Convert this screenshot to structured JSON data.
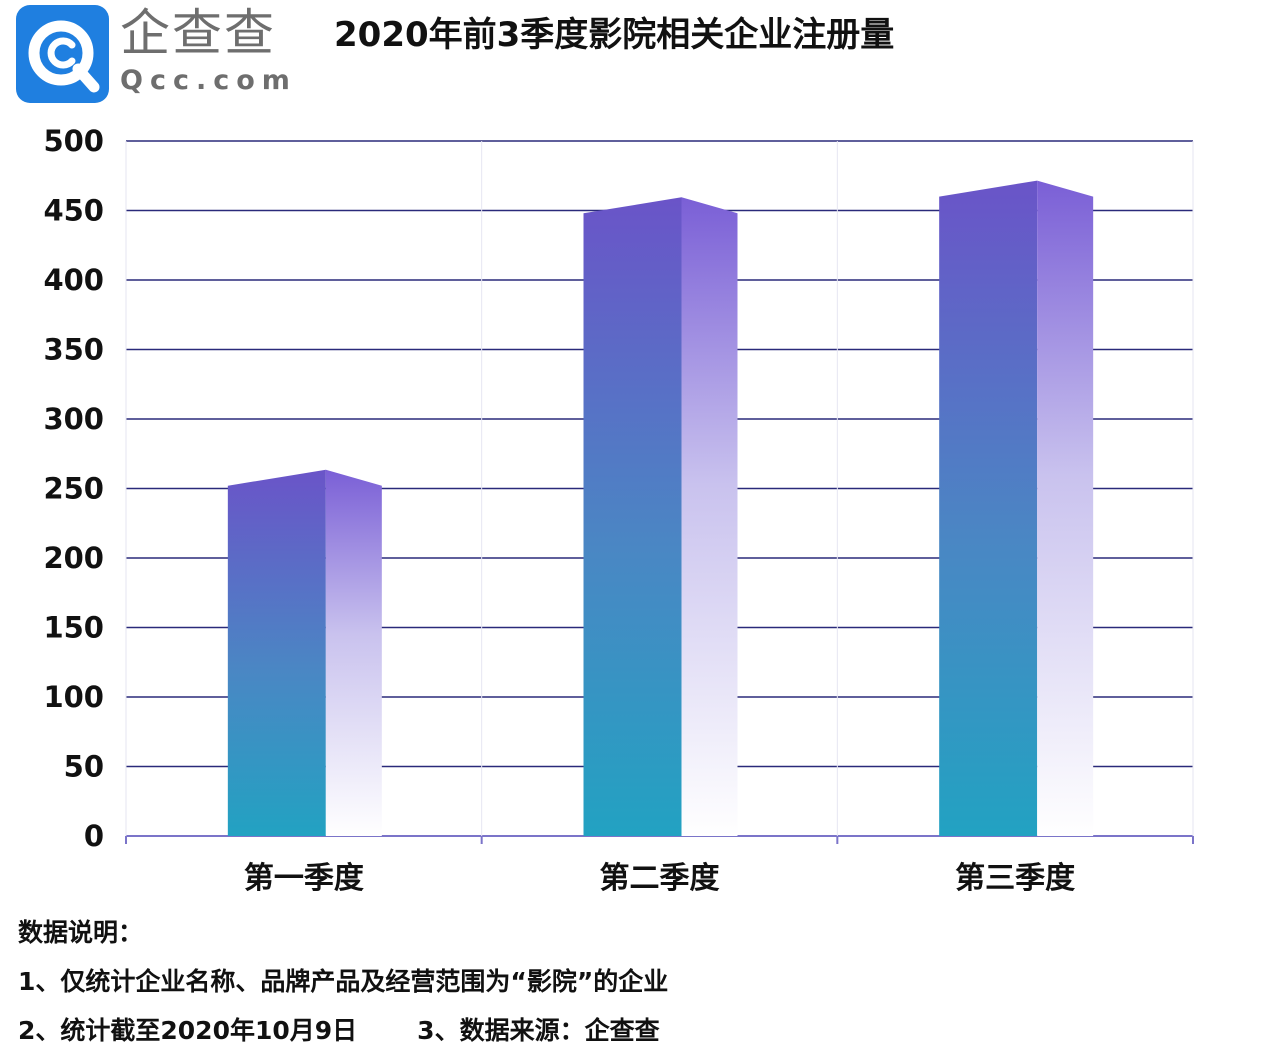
{
  "logo": {
    "name_cn": "企查查",
    "name_en": "Qcc.com",
    "brand_color": "#1f7fe0"
  },
  "title": "2020年前3季度影院相关企业注册量",
  "chart_data": {
    "type": "bar",
    "title": "2020年前3季度影院相关企业注册量",
    "categories": [
      "第一季度",
      "第二季度",
      "第三季度"
    ],
    "values": [
      252,
      448,
      460
    ],
    "ylim": [
      0,
      500
    ],
    "yticks": [
      "0",
      "50",
      "100",
      "150",
      "200",
      "250",
      "300",
      "350",
      "400",
      "450",
      "500"
    ],
    "grid": true,
    "xlabel": "",
    "ylabel": "",
    "colors": {
      "top": "#6a54c8",
      "bottom": "#21a0c0",
      "side_top": "#7a5fd6",
      "side_bottom": "#ffffff",
      "grid": "#2a2a7a"
    }
  },
  "notes": {
    "heading": "数据说明：",
    "line1": "1、仅统计企业名称、品牌产品及经营范围为“影院”的企业",
    "line2a": "2、统计截至2020年10月9日",
    "line2b": "3、数据来源：企查查"
  }
}
